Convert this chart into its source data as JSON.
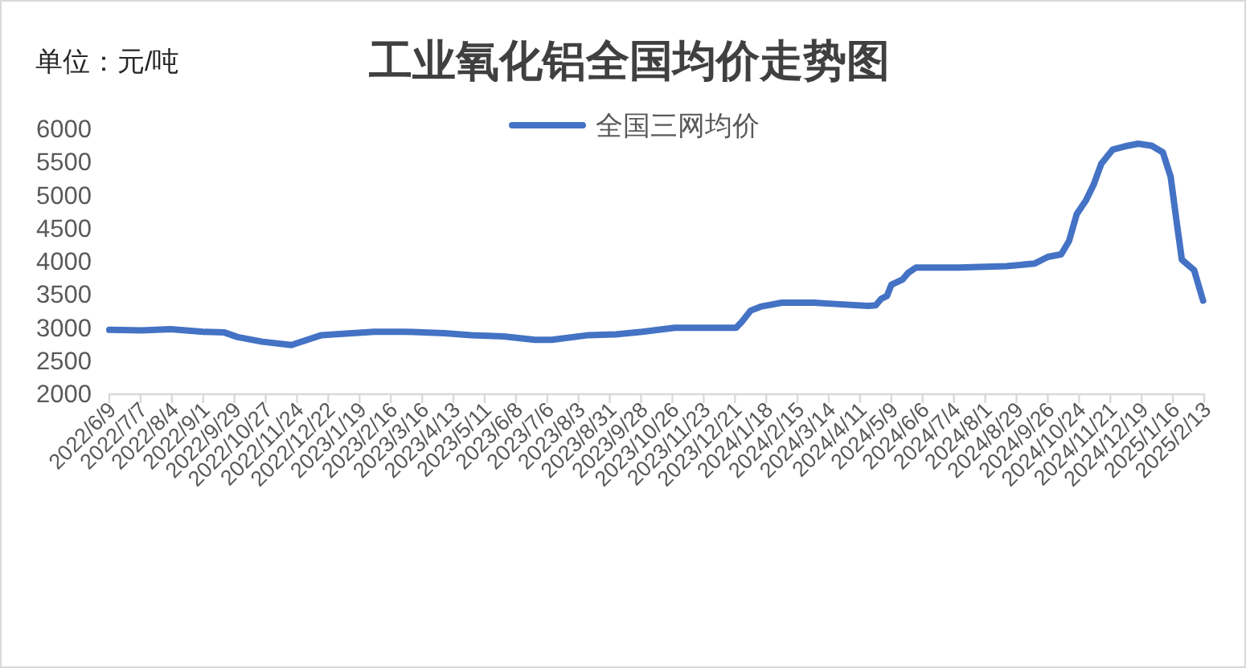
{
  "chart_data": {
    "type": "line",
    "title": "工业氧化铝全国均价走势图",
    "ylabel": "单位：元/吨",
    "x": [
      "2022-06-09",
      "2022-07-08",
      "2022-08-03",
      "2022-09-01",
      "2022-09-20",
      "2022-10-02",
      "2022-10-24",
      "2022-11-19",
      "2022-11-26",
      "2022-12-16",
      "2023-01-04",
      "2023-02-01",
      "2023-03-02",
      "2023-04-05",
      "2023-04-29",
      "2023-05-28",
      "2023-06-25",
      "2023-07-10",
      "2023-08-12",
      "2023-09-05",
      "2023-09-29",
      "2023-10-28",
      "2023-11-26",
      "2023-12-22",
      "2023-12-27",
      "2024-01-04",
      "2024-01-13",
      "2024-02-01",
      "2024-03-01",
      "2024-03-20",
      "2024-04-18",
      "2024-04-25",
      "2024-04-30",
      "2024-05-05",
      "2024-05-09",
      "2024-05-19",
      "2024-05-24",
      "2024-05-31",
      "2024-07-08",
      "2024-08-20",
      "2024-09-14",
      "2024-09-26",
      "2024-10-08",
      "2024-10-15",
      "2024-10-22",
      "2024-10-30",
      "2024-11-06",
      "2024-11-13",
      "2024-11-23",
      "2024-12-04",
      "2024-12-16",
      "2024-12-28",
      "2025-01-07",
      "2025-01-14",
      "2025-01-19",
      "2025-01-24",
      "2025-02-04",
      "2025-02-12"
    ],
    "series": [
      {
        "name": "全国三网均价",
        "color": "#4472c4",
        "values": [
          2960,
          2950,
          2970,
          2930,
          2920,
          2850,
          2780,
          2730,
          2770,
          2880,
          2900,
          2930,
          2930,
          2910,
          2880,
          2860,
          2810,
          2810,
          2880,
          2890,
          2930,
          2990,
          2990,
          2990,
          3080,
          3250,
          3310,
          3370,
          3370,
          3350,
          3320,
          3330,
          3430,
          3470,
          3640,
          3720,
          3820,
          3900,
          3900,
          3920,
          3960,
          4060,
          4100,
          4300,
          4710,
          4910,
          5150,
          5470,
          5680,
          5730,
          5770,
          5740,
          5640,
          5270,
          4630,
          4020,
          3860,
          3400
        ]
      }
    ],
    "xlim": [
      "2022-06-09",
      "2025-02-13"
    ],
    "xticks": [
      {
        "value": "2022-06-09",
        "label": "2022/6/9"
      },
      {
        "value": "2022-07-07",
        "label": "2022/7/7"
      },
      {
        "value": "2022-08-04",
        "label": "2022/8/4"
      },
      {
        "value": "2022-09-01",
        "label": "2022/9/1"
      },
      {
        "value": "2022-09-29",
        "label": "2022/9/29"
      },
      {
        "value": "2022-10-27",
        "label": "2022/10/27"
      },
      {
        "value": "2022-11-24",
        "label": "2022/11/24"
      },
      {
        "value": "2022-12-22",
        "label": "2022/12/22"
      },
      {
        "value": "2023-01-19",
        "label": "2023/1/19"
      },
      {
        "value": "2023-02-16",
        "label": "2023/2/16"
      },
      {
        "value": "2023-03-16",
        "label": "2023/3/16"
      },
      {
        "value": "2023-04-13",
        "label": "2023/4/13"
      },
      {
        "value": "2023-05-11",
        "label": "2023/5/11"
      },
      {
        "value": "2023-06-08",
        "label": "2023/6/8"
      },
      {
        "value": "2023-07-06",
        "label": "2023/7/6"
      },
      {
        "value": "2023-08-03",
        "label": "2023/8/3"
      },
      {
        "value": "2023-08-31",
        "label": "2023/8/31"
      },
      {
        "value": "2023-09-28",
        "label": "2023/9/28"
      },
      {
        "value": "2023-10-26",
        "label": "2023/10/26"
      },
      {
        "value": "2023-11-23",
        "label": "2023/11/23"
      },
      {
        "value": "2023-12-21",
        "label": "2023/12/21"
      },
      {
        "value": "2024-01-18",
        "label": "2024/1/18"
      },
      {
        "value": "2024-02-15",
        "label": "2024/2/15"
      },
      {
        "value": "2024-03-14",
        "label": "2024/3/14"
      },
      {
        "value": "2024-04-11",
        "label": "2024/4/11"
      },
      {
        "value": "2024-05-09",
        "label": "2024/5/9"
      },
      {
        "value": "2024-06-06",
        "label": "2024/6/6"
      },
      {
        "value": "2024-07-04",
        "label": "2024/7/4"
      },
      {
        "value": "2024-08-01",
        "label": "2024/8/1"
      },
      {
        "value": "2024-08-29",
        "label": "2024/8/29"
      },
      {
        "value": "2024-09-26",
        "label": "2024/9/26"
      },
      {
        "value": "2024-10-24",
        "label": "2024/10/24"
      },
      {
        "value": "2024-11-21",
        "label": "2024/11/21"
      },
      {
        "value": "2024-12-19",
        "label": "2024/12/19"
      },
      {
        "value": "2025-01-16",
        "label": "2025/1/16"
      },
      {
        "value": "2025-02-13",
        "label": "2025/2/13"
      }
    ],
    "ylim": [
      2000,
      6000
    ],
    "yticks": [
      2000,
      2500,
      3000,
      3500,
      4000,
      4500,
      5000,
      5500,
      6000
    ],
    "legend": "top",
    "line_style": "solid"
  }
}
